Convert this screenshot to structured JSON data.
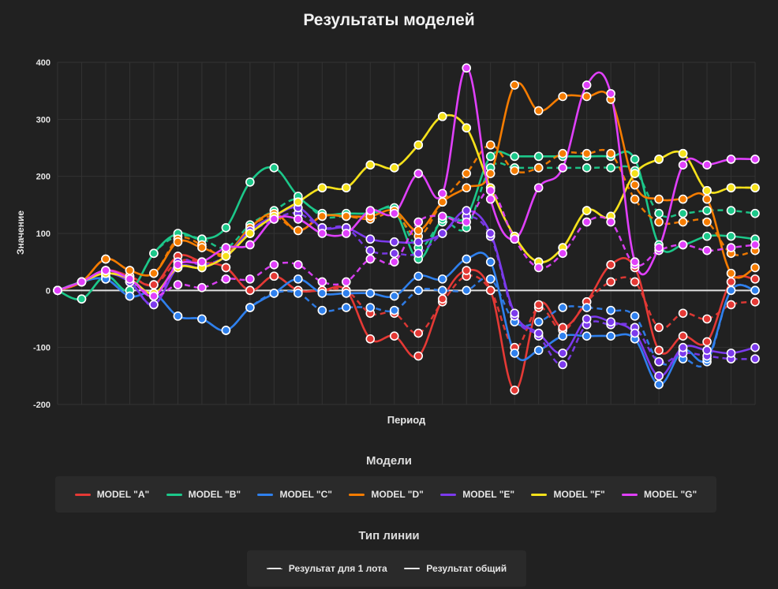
{
  "title": "Результаты моделей",
  "legend_models_title": "Модели",
  "legend_linetype_title": "Тип линии",
  "line_types": [
    {
      "label": "Результат для 1 лота",
      "style": "dashed"
    },
    {
      "label": "Результат общий",
      "style": "solid"
    }
  ],
  "chart_data": {
    "type": "line",
    "title": "Результаты моделей",
    "xlabel": "Период",
    "ylabel": "Значение",
    "ylim": [
      -200,
      400
    ],
    "yticks": [
      400,
      300,
      200,
      100,
      0,
      -100,
      -200
    ],
    "x": [
      0,
      1,
      2,
      3,
      4,
      5,
      6,
      7,
      8,
      9,
      10,
      11,
      12,
      13,
      14,
      15,
      16,
      17,
      18,
      19,
      20,
      21,
      22,
      23,
      24,
      25,
      26,
      27,
      28,
      29
    ],
    "series": [
      {
        "name": "MODEL \"A\"",
        "color": "#e53935",
        "total": [
          0,
          15,
          35,
          25,
          10,
          60,
          50,
          40,
          0,
          25,
          0,
          0,
          0,
          -85,
          -80,
          -115,
          -15,
          35,
          0,
          -175,
          -25,
          -65,
          -20,
          45,
          40,
          -105,
          -80,
          -90,
          15,
          20
        ],
        "per_lot": [
          0,
          15,
          35,
          25,
          10,
          50,
          50,
          40,
          0,
          25,
          0,
          0,
          0,
          -40,
          -40,
          -75,
          -20,
          25,
          0,
          -100,
          -30,
          -70,
          -20,
          15,
          15,
          -65,
          -40,
          -50,
          -25,
          -20
        ]
      },
      {
        "name": "MODEL \"B\"",
        "color": "#1cc88a",
        "total": [
          0,
          -15,
          25,
          0,
          65,
          100,
          90,
          110,
          190,
          215,
          165,
          135,
          135,
          135,
          140,
          55,
          125,
          130,
          235,
          235,
          235,
          235,
          235,
          235,
          230,
          80,
          80,
          95,
          95,
          90
        ],
        "per_lot": [
          0,
          -15,
          25,
          0,
          65,
          95,
          90,
          75,
          115,
          140,
          160,
          130,
          130,
          130,
          145,
          75,
          120,
          110,
          215,
          215,
          215,
          215,
          215,
          215,
          210,
          135,
          135,
          140,
          140,
          135
        ]
      },
      {
        "name": "MODEL \"C\"",
        "color": "#2f80ed",
        "total": [
          0,
          15,
          20,
          -10,
          -5,
          -45,
          -50,
          -70,
          -30,
          -5,
          20,
          -5,
          -5,
          -5,
          -10,
          25,
          20,
          55,
          50,
          -110,
          -105,
          -80,
          -80,
          -80,
          -85,
          -165,
          -105,
          -120,
          0,
          0
        ],
        "per_lot": [
          0,
          15,
          20,
          -10,
          -5,
          -45,
          -50,
          -70,
          -30,
          -5,
          -5,
          -35,
          -30,
          -30,
          -35,
          0,
          0,
          0,
          20,
          -55,
          -55,
          -30,
          -30,
          -35,
          -45,
          -125,
          -120,
          -125,
          0,
          0
        ]
      },
      {
        "name": "MODEL \"D\"",
        "color": "#f57c00",
        "total": [
          0,
          15,
          55,
          35,
          30,
          85,
          75,
          65,
          110,
          135,
          105,
          130,
          130,
          130,
          140,
          105,
          155,
          180,
          205,
          360,
          315,
          340,
          340,
          335,
          185,
          160,
          160,
          160,
          30,
          40
        ],
        "per_lot": [
          0,
          15,
          55,
          35,
          30,
          90,
          80,
          60,
          110,
          130,
          105,
          130,
          130,
          125,
          135,
          95,
          155,
          205,
          255,
          210,
          215,
          240,
          240,
          240,
          160,
          120,
          120,
          120,
          65,
          70
        ]
      },
      {
        "name": "MODEL \"E\"",
        "color": "#7c3aed",
        "total": [
          0,
          15,
          30,
          15,
          -25,
          40,
          40,
          60,
          105,
          130,
          145,
          110,
          110,
          90,
          85,
          85,
          100,
          140,
          100,
          -40,
          -75,
          -110,
          -50,
          -55,
          -75,
          -150,
          -100,
          -105,
          -110,
          -100
        ],
        "per_lot": [
          0,
          15,
          30,
          15,
          -25,
          50,
          45,
          60,
          100,
          125,
          135,
          110,
          110,
          70,
          65,
          65,
          100,
          130,
          95,
          -45,
          -80,
          -130,
          -60,
          -60,
          -65,
          -125,
          -110,
          -115,
          -120,
          -120
        ]
      },
      {
        "name": "MODEL \"F\"",
        "color": "#f5e11b",
        "total": [
          0,
          15,
          30,
          20,
          -5,
          40,
          40,
          60,
          100,
          130,
          155,
          180,
          180,
          220,
          215,
          255,
          305,
          285,
          180,
          95,
          50,
          75,
          140,
          130,
          205,
          230,
          240,
          175,
          180,
          180
        ],
        "per_lot": [
          0,
          15,
          30,
          20,
          -5,
          40,
          40,
          60,
          100,
          130,
          155,
          180,
          180,
          220,
          215,
          255,
          305,
          285,
          180,
          95,
          50,
          75,
          140,
          130,
          205,
          230,
          240,
          175,
          180,
          180
        ]
      },
      {
        "name": "MODEL \"G\"",
        "color": "#e040fb",
        "total": [
          0,
          15,
          35,
          20,
          -10,
          45,
          50,
          75,
          80,
          125,
          125,
          100,
          100,
          140,
          135,
          205,
          170,
          390,
          160,
          90,
          180,
          215,
          360,
          345,
          50,
          75,
          220,
          220,
          230,
          230
        ],
        "per_lot": [
          0,
          15,
          35,
          20,
          -10,
          10,
          5,
          20,
          20,
          45,
          45,
          15,
          15,
          55,
          50,
          120,
          130,
          120,
          175,
          90,
          40,
          65,
          120,
          120,
          45,
          70,
          80,
          70,
          75,
          80
        ]
      }
    ]
  }
}
